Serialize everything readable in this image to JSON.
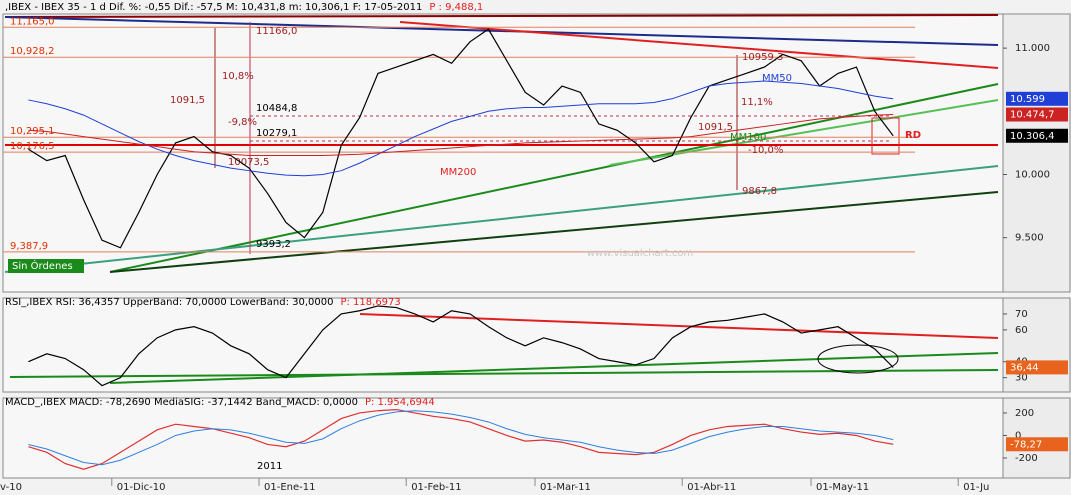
{
  "chart_data": [
    {
      "type": "line",
      "title": ",IBEX - IBEX 35 -  1 d Dif. %: -0,55 Dif.: -57,5 M: 10,431,8 m: 10,306,1 F: 17-05-2011",
      "subtitle": "P : 9,488,1",
      "ylim": [
        9070,
        11270
      ],
      "yticks": [
        {
          "value": 11000,
          "label": "11.000"
        },
        {
          "value": 10000,
          "label": "10.000"
        },
        {
          "value": 9500,
          "label": "9.500"
        }
      ],
      "series": [
        {
          "name": "IBEX 35",
          "color": "#000000",
          "values": [
            null,
            10200,
            10110,
            10150,
            9800,
            9480,
            9420,
            9700,
            10000,
            10250,
            10300,
            10180,
            10150,
            10050,
            9850,
            9620,
            9500,
            9700,
            10230,
            10450,
            10800,
            10850,
            10900,
            10950,
            10880,
            11050,
            11150,
            10900,
            10650,
            10550,
            10700,
            10650,
            10400,
            10350,
            10250,
            10100,
            10150,
            10450,
            10700,
            10750,
            10800,
            10850,
            10950,
            10900,
            10700,
            10800,
            10850,
            10500,
            10306,
            null,
            null,
            null,
            null,
            null
          ]
        },
        {
          "name": "MM50",
          "color": "#1f3fd6",
          "values": [
            null,
            10590,
            10560,
            10520,
            10470,
            10400,
            10330,
            10260,
            10200,
            10150,
            10110,
            10080,
            10050,
            10030,
            10010,
            9995,
            9990,
            10000,
            10030,
            10090,
            10160,
            10230,
            10300,
            10360,
            10420,
            10460,
            10500,
            10520,
            10530,
            10530,
            10540,
            10550,
            10560,
            10560,
            10560,
            10570,
            10600,
            10650,
            10700,
            10720,
            10730,
            10740,
            10730,
            10720,
            10700,
            10680,
            10650,
            10620,
            10599,
            null,
            null,
            null,
            null,
            null
          ]
        },
        {
          "name": "MM200",
          "color": "#cc2222",
          "values": [
            null,
            10350,
            10340,
            10320,
            10300,
            10280,
            10260,
            10240,
            10220,
            10200,
            10180,
            10170,
            10160,
            10150,
            10150,
            10150,
            10150,
            10150,
            10155,
            10160,
            10170,
            10180,
            10190,
            10200,
            10210,
            10220,
            10230,
            10240,
            10250,
            10255,
            10260,
            10265,
            10270,
            10275,
            10280,
            10285,
            10290,
            10300,
            10320,
            10340,
            10360,
            10380,
            10400,
            10420,
            10440,
            10450,
            10460,
            10470,
            10474.7,
            null,
            null,
            null,
            null,
            null
          ]
        }
      ],
      "levels": [
        {
          "value": 11165,
          "label": "11,165,0"
        },
        {
          "value": 10928.2,
          "label": "10,928,2"
        },
        {
          "value": 10295.1,
          "label": "10,295,1"
        },
        {
          "value": 10176.5,
          "label": "10,176,5"
        },
        {
          "value": 9387.9,
          "label": "9,387,9"
        }
      ],
      "markers": [
        {
          "value": 10599,
          "label": "10.599",
          "color": "#1f3fd6"
        },
        {
          "value": 10474.7,
          "label": "10.474,7",
          "color": "#cc2222"
        },
        {
          "value": 10306.4,
          "label": "10.306,4",
          "color": "#000000"
        }
      ],
      "annotations": [
        "11166,0",
        "10,8%",
        "1091,5",
        "10484,8",
        "10279,1",
        "-9,8%",
        "10073,5",
        "9393,2",
        "MM200",
        "MM50",
        "MM100",
        "10959,3",
        "11,1%",
        "1091,5",
        "-10,0%",
        "9867,8",
        "RD",
        "Sin Órdenes",
        "www.visualchart.com"
      ]
    },
    {
      "type": "line",
      "title": "RSI_,IBEX RSI: 36,4357 UpperBand: 70,0000 LowerBand: 30,0000",
      "subtitle": "P: 118,6973",
      "ylim": [
        21,
        80
      ],
      "yticks": [
        70,
        60,
        40,
        30
      ],
      "series": [
        {
          "name": "RSI",
          "color": "#000000",
          "values": [
            null,
            40,
            45,
            42,
            35,
            25,
            30,
            45,
            55,
            60,
            62,
            58,
            50,
            45,
            35,
            30,
            45,
            60,
            70,
            72,
            75,
            74,
            70,
            65,
            72,
            70,
            62,
            55,
            50,
            55,
            52,
            48,
            42,
            40,
            38,
            42,
            55,
            62,
            65,
            66,
            68,
            70,
            65,
            58,
            60,
            62,
            55,
            48,
            36.44,
            null,
            null,
            null,
            null,
            null
          ]
        }
      ],
      "markers": [
        {
          "value": 36.44,
          "label": "36,44",
          "color": "#e8641e"
        }
      ]
    },
    {
      "type": "line",
      "title": "MACD_,IBEX MACD: -78,2690 MediaSIG: -37,1442 Band_MACD: 0,0000",
      "subtitle": "P: 1.954,6944",
      "ylim": [
        -378,
        333
      ],
      "yticks": [
        200,
        0,
        -200
      ],
      "categories": [
        "v-10",
        null,
        null,
        null,
        null,
        null,
        null,
        "01-Dic-10",
        null,
        null,
        null,
        null,
        null,
        null,
        null,
        "01-Ene-11",
        null,
        null,
        null,
        null,
        null,
        null,
        null,
        "01-Feb-11",
        null,
        null,
        null,
        null,
        null,
        null,
        "01-Mar-11",
        null,
        null,
        null,
        null,
        null,
        null,
        null,
        "01-Abr-11",
        null,
        null,
        null,
        null,
        null,
        null,
        "01-May-11",
        null,
        null,
        null,
        null,
        null,
        null,
        null,
        "01-Ju"
      ],
      "series": [
        {
          "name": "MACD",
          "color": "#e03030",
          "values": [
            null,
            -100,
            -150,
            -250,
            -300,
            -250,
            -150,
            -50,
            50,
            100,
            80,
            60,
            20,
            -20,
            -80,
            -100,
            -50,
            50,
            150,
            200,
            220,
            230,
            200,
            170,
            150,
            120,
            60,
            0,
            -50,
            -40,
            -60,
            -100,
            -150,
            -160,
            -170,
            -150,
            -80,
            0,
            50,
            80,
            90,
            100,
            60,
            30,
            10,
            20,
            0,
            -50,
            -78.27,
            null,
            null,
            null,
            null,
            null
          ]
        },
        {
          "name": "MediaSIG",
          "color": "#2f7fe0",
          "values": [
            null,
            -80,
            -120,
            -180,
            -240,
            -260,
            -220,
            -150,
            -80,
            0,
            40,
            60,
            50,
            20,
            -20,
            -60,
            -70,
            -30,
            60,
            130,
            180,
            210,
            220,
            210,
            190,
            160,
            120,
            60,
            10,
            -20,
            -40,
            -60,
            -100,
            -130,
            -150,
            -160,
            -130,
            -70,
            -10,
            30,
            60,
            80,
            80,
            60,
            40,
            30,
            20,
            0,
            -37,
            null,
            null,
            null,
            null,
            null
          ]
        }
      ],
      "markers": [
        {
          "value": -78.27,
          "label": "-78,27",
          "color": "#e8641e"
        }
      ],
      "annotations": [
        "2011"
      ]
    }
  ]
}
